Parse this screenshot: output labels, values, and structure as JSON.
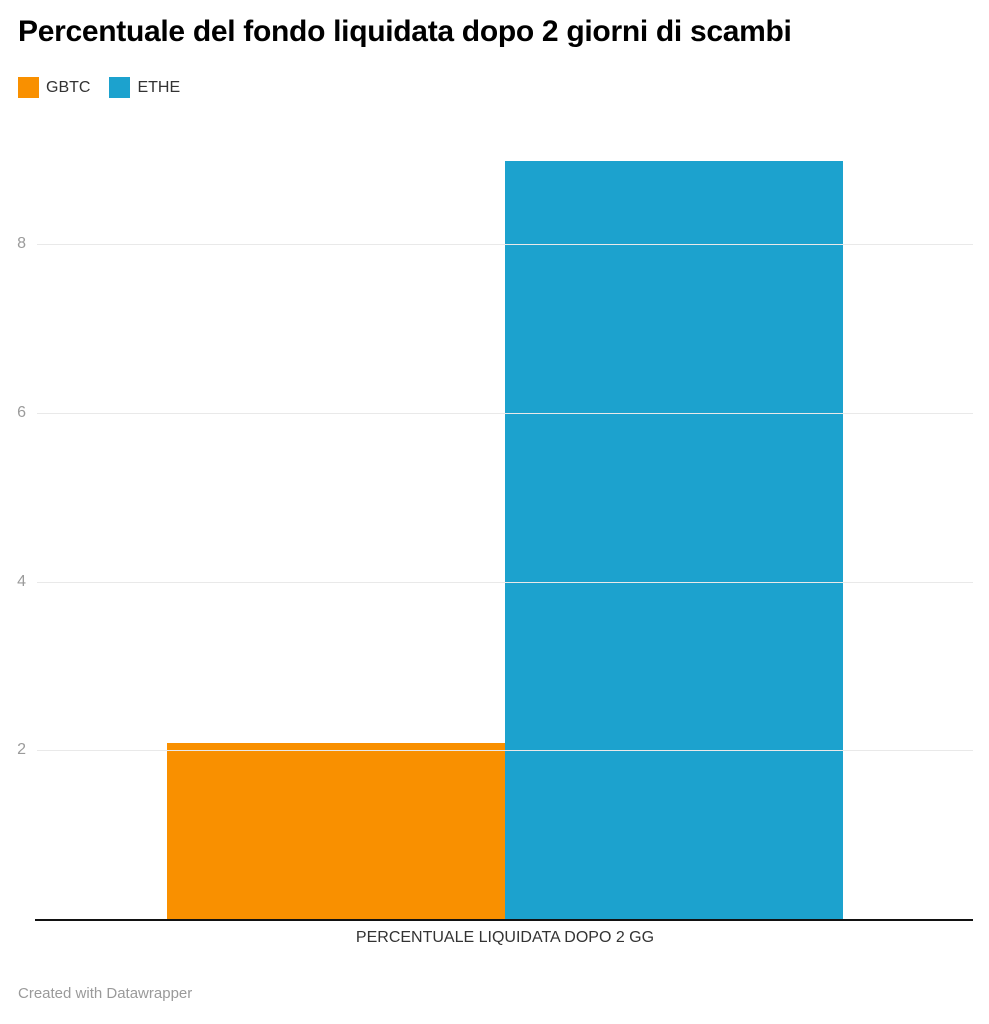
{
  "title": "Percentuale del fondo liquidata dopo 2 giorni di scambi",
  "footer": {
    "text": "Created with Datawrapper"
  },
  "colors": {
    "gbtc": "#f99000",
    "ethe": "#1ca2ce",
    "gridline": "#e9e9e9",
    "tick_text": "#9b9b9b",
    "axis_line": "#121212",
    "label_text": "#333333"
  },
  "chart_data": {
    "type": "bar",
    "title": "Percentuale del fondo liquidata dopo 2 giorni di scambi",
    "categories": [
      "PERCENTUALE LIQUIDATA DOPO 2 GG"
    ],
    "series": [
      {
        "name": "GBTC",
        "values": [
          2.1
        ],
        "color": "#f99000"
      },
      {
        "name": "ETHE",
        "values": [
          9.0
        ],
        "color": "#1ca2ce"
      }
    ],
    "xlabel": "PERCENTUALE LIQUIDATA DOPO 2 GG",
    "ylabel": "",
    "ylim": [
      0,
      9
    ],
    "yticks": [
      2,
      4,
      6,
      8
    ],
    "grid": true,
    "legend_position": "top-left",
    "bar_orientation": "vertical"
  }
}
